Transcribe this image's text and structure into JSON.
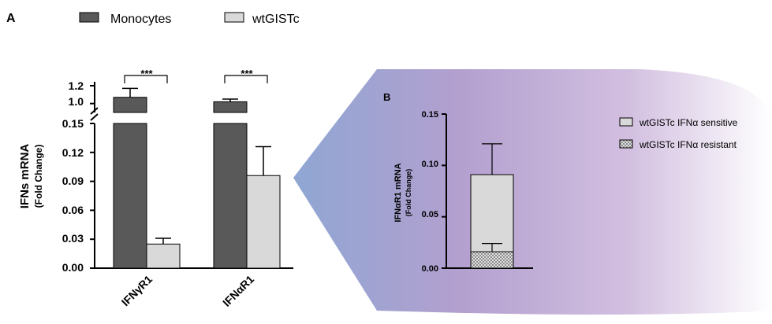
{
  "chart_data": [
    {
      "panel": "A",
      "type": "bar",
      "ylabel": "IFNs mRNA",
      "ylabel_sub": "(Fold Change)",
      "categories": [
        "IFNγR1",
        "IFNαR1"
      ],
      "series": [
        {
          "name": "Monocytes",
          "values": [
            1.07,
            1.02
          ],
          "errors": [
            0.1,
            0.03
          ],
          "color": "#595959"
        },
        {
          "name": "wtGISTc",
          "values": [
            0.025,
            0.096
          ],
          "errors": [
            0.006,
            0.03
          ],
          "color": "#d9d9d9"
        }
      ],
      "y_axis_broken": true,
      "ylim_lower": [
        0,
        0.15
      ],
      "ylim_upper": [
        0.9,
        1.2
      ],
      "yticks_lower": [
        "0.00",
        "0.03",
        "0.06",
        "0.09",
        "0.12",
        "0.15"
      ],
      "yticks_upper": [
        "1.0",
        "1.2"
      ],
      "significance": [
        "***",
        "***"
      ]
    },
    {
      "panel": "B",
      "type": "bar",
      "stacked": true,
      "ylabel": "IFNαR1 mRNA",
      "ylabel_sub": "(Fold Change)",
      "ylim": [
        0,
        0.15
      ],
      "yticks": [
        "0.00",
        "0.05",
        "0.10",
        "0.15"
      ],
      "series": [
        {
          "name": "wtGISTc IFNα sensitive",
          "value": 0.091,
          "error": 0.03,
          "color": "#d9d9d9"
        },
        {
          "name": "wtGISTc IFNα resistant",
          "value": 0.016,
          "error": 0.008,
          "color": "#bdbdbd",
          "pattern": "checkered"
        }
      ]
    }
  ],
  "panel_a_label": "A",
  "panel_b_label": "B",
  "legend_a": [
    "Monocytes",
    "wtGISTc"
  ],
  "legend_b": [
    "wtGISTc IFNα sensitive",
    "wtGISTc IFNα resistant"
  ]
}
